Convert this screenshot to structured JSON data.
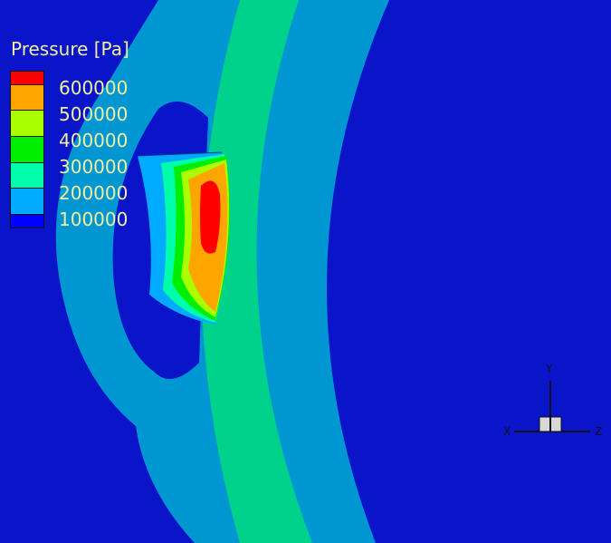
{
  "legend": {
    "title": "Pressure [Pa]",
    "labels": [
      "600000",
      "500000",
      "400000",
      "300000",
      "200000",
      "100000"
    ],
    "colors": [
      "#ff0000",
      "#ffa500",
      "#aaff00",
      "#00ee00",
      "#00ffaa",
      "#00aaff",
      "#0000ff"
    ]
  },
  "triad": {
    "x": "X",
    "y": "Y",
    "z": "Z"
  },
  "colors": {
    "background": "#0a14c8",
    "band_light": "#0096d2",
    "band_green": "#00d28c"
  }
}
